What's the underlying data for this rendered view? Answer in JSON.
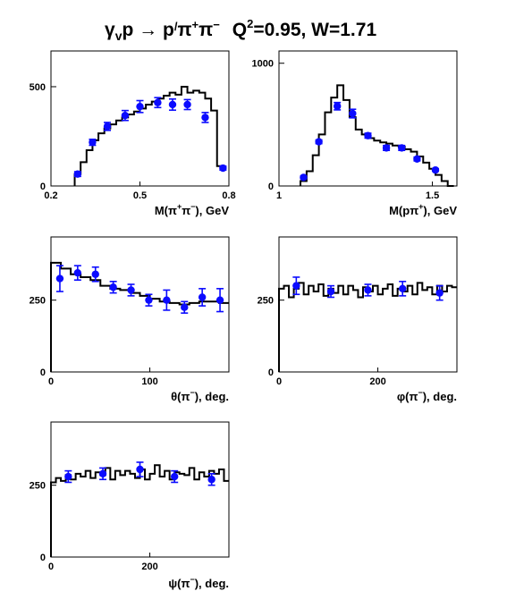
{
  "title": {
    "reaction": "γ",
    "reaction_sub": "v",
    "reaction_rest": "p → p",
    "reaction_prime": "/",
    "reaction_pions": "π",
    "sup_plus": "+",
    "pion2": "π",
    "sup_minus": "−",
    "q2_label": "Q",
    "q2_sup": "2",
    "q2_value": "=0.95, W=1.71"
  },
  "chart_data": [
    {
      "type": "scatter",
      "name": "m_pipi",
      "xlabel": "M(π⁺π⁻), GeV",
      "xlim": [
        0.2,
        0.8
      ],
      "ylim": [
        0,
        680
      ],
      "x_ticks": [
        "0.2",
        "0.5",
        "0.8"
      ],
      "x_tick_values": [
        0.2,
        0.5,
        0.8
      ],
      "y_ticks": [
        "0",
        "500"
      ],
      "y_tick_values": [
        0,
        500
      ],
      "histogram": {
        "edges": [
          0.28,
          0.3,
          0.32,
          0.34,
          0.36,
          0.38,
          0.4,
          0.42,
          0.44,
          0.46,
          0.48,
          0.5,
          0.52,
          0.54,
          0.56,
          0.58,
          0.6,
          0.62,
          0.64,
          0.66,
          0.68,
          0.7,
          0.72,
          0.74,
          0.76,
          0.78
        ],
        "values": [
          60,
          120,
          180,
          230,
          265,
          290,
          310,
          330,
          345,
          360,
          375,
          390,
          410,
          425,
          440,
          455,
          470,
          460,
          500,
          470,
          480,
          470,
          440,
          380,
          100
        ]
      },
      "points": [
        {
          "x": 0.29,
          "y": 60,
          "err": 12
        },
        {
          "x": 0.34,
          "y": 220,
          "err": 15
        },
        {
          "x": 0.39,
          "y": 300,
          "err": 20
        },
        {
          "x": 0.45,
          "y": 355,
          "err": 25
        },
        {
          "x": 0.5,
          "y": 400,
          "err": 30
        },
        {
          "x": 0.56,
          "y": 420,
          "err": 25
        },
        {
          "x": 0.61,
          "y": 410,
          "err": 28
        },
        {
          "x": 0.66,
          "y": 410,
          "err": 25
        },
        {
          "x": 0.72,
          "y": 345,
          "err": 25
        },
        {
          "x": 0.78,
          "y": 90,
          "err": 10
        }
      ]
    },
    {
      "type": "scatter",
      "name": "m_ppip",
      "xlabel": "M(pπ⁺), GeV",
      "xlim": [
        1.0,
        1.58
      ],
      "ylim": [
        0,
        1100
      ],
      "x_ticks": [
        "1",
        "1.5"
      ],
      "x_tick_values": [
        1.0,
        1.5
      ],
      "y_ticks": [
        "0",
        "1000"
      ],
      "y_tick_values": [
        0,
        1000
      ],
      "histogram": {
        "edges": [
          1.07,
          1.09,
          1.11,
          1.13,
          1.15,
          1.17,
          1.19,
          1.21,
          1.23,
          1.25,
          1.27,
          1.29,
          1.31,
          1.33,
          1.35,
          1.37,
          1.39,
          1.41,
          1.43,
          1.45,
          1.47,
          1.49,
          1.51,
          1.53,
          1.55,
          1.57
        ],
        "values": [
          40,
          120,
          250,
          420,
          600,
          720,
          820,
          700,
          560,
          460,
          420,
          390,
          370,
          355,
          345,
          330,
          320,
          300,
          280,
          240,
          190,
          140,
          90,
          40,
          0
        ]
      },
      "points": [
        {
          "x": 1.08,
          "y": 70,
          "err": 10
        },
        {
          "x": 1.13,
          "y": 360,
          "err": 15
        },
        {
          "x": 1.19,
          "y": 650,
          "err": 30
        },
        {
          "x": 1.24,
          "y": 590,
          "err": 35
        },
        {
          "x": 1.29,
          "y": 410,
          "err": 20
        },
        {
          "x": 1.35,
          "y": 310,
          "err": 20
        },
        {
          "x": 1.4,
          "y": 310,
          "err": 20
        },
        {
          "x": 1.45,
          "y": 220,
          "err": 15
        },
        {
          "x": 1.51,
          "y": 130,
          "err": 10
        }
      ]
    },
    {
      "type": "scatter",
      "name": "theta_pim",
      "xlabel": "θ(π⁻), deg.",
      "xlim": [
        0,
        180
      ],
      "ylim": [
        0,
        470
      ],
      "x_ticks": [
        "0",
        "100"
      ],
      "x_tick_values": [
        0,
        100
      ],
      "y_ticks": [
        "0",
        "250"
      ],
      "y_tick_values": [
        0,
        250
      ],
      "histogram": {
        "edges": [
          0,
          10,
          20,
          30,
          40,
          50,
          60,
          70,
          80,
          90,
          100,
          110,
          120,
          130,
          140,
          150,
          160,
          170,
          180
        ],
        "values": [
          380,
          360,
          340,
          330,
          320,
          300,
          290,
          285,
          275,
          265,
          255,
          245,
          240,
          235,
          240,
          245,
          245,
          240
        ]
      },
      "points": [
        {
          "x": 9,
          "y": 325,
          "err": 45
        },
        {
          "x": 27,
          "y": 345,
          "err": 25
        },
        {
          "x": 45,
          "y": 340,
          "err": 25
        },
        {
          "x": 63,
          "y": 295,
          "err": 20
        },
        {
          "x": 81,
          "y": 285,
          "err": 20
        },
        {
          "x": 99,
          "y": 250,
          "err": 20
        },
        {
          "x": 117,
          "y": 250,
          "err": 35
        },
        {
          "x": 135,
          "y": 225,
          "err": 20
        },
        {
          "x": 153,
          "y": 260,
          "err": 30
        },
        {
          "x": 171,
          "y": 250,
          "err": 40
        }
      ]
    },
    {
      "type": "scatter",
      "name": "phi_pim",
      "xlabel": "φ(π⁻), deg.",
      "xlim": [
        0,
        360
      ],
      "ylim": [
        0,
        470
      ],
      "x_ticks": [
        "0",
        "200"
      ],
      "x_tick_values": [
        0,
        200
      ],
      "y_ticks": [
        "0",
        "250"
      ],
      "y_tick_values": [
        0,
        250
      ],
      "histogram": {
        "edges": [
          0,
          10,
          20,
          30,
          40,
          50,
          60,
          70,
          80,
          90,
          100,
          110,
          120,
          130,
          140,
          150,
          160,
          170,
          180,
          190,
          200,
          210,
          220,
          230,
          240,
          250,
          260,
          270,
          280,
          290,
          300,
          310,
          320,
          330,
          340,
          350,
          360
        ],
        "values": [
          290,
          300,
          260,
          290,
          310,
          270,
          300,
          280,
          305,
          265,
          290,
          275,
          300,
          270,
          300,
          285,
          260,
          295,
          280,
          300,
          270,
          290,
          305,
          265,
          290,
          280,
          300,
          270,
          310,
          285,
          295,
          270,
          300,
          280,
          300,
          295
        ]
      },
      "points": [
        {
          "x": 35,
          "y": 300,
          "err": 30
        },
        {
          "x": 105,
          "y": 280,
          "err": 20
        },
        {
          "x": 180,
          "y": 285,
          "err": 20
        },
        {
          "x": 250,
          "y": 290,
          "err": 25
        },
        {
          "x": 325,
          "y": 275,
          "err": 25
        }
      ]
    },
    {
      "type": "scatter",
      "name": "psi_pim",
      "xlabel": "ψ(π⁻), deg.",
      "xlim": [
        0,
        360
      ],
      "ylim": [
        0,
        470
      ],
      "x_ticks": [
        "0",
        "200"
      ],
      "x_tick_values": [
        0,
        200
      ],
      "y_ticks": [
        "0",
        "250"
      ],
      "y_tick_values": [
        0,
        250
      ],
      "histogram": {
        "edges": [
          0,
          10,
          20,
          30,
          40,
          50,
          60,
          70,
          80,
          90,
          100,
          110,
          120,
          130,
          140,
          150,
          160,
          170,
          180,
          190,
          200,
          210,
          220,
          230,
          240,
          250,
          260,
          270,
          280,
          290,
          300,
          310,
          320,
          330,
          340,
          350,
          360
        ],
        "values": [
          260,
          275,
          265,
          285,
          270,
          290,
          280,
          300,
          275,
          295,
          285,
          310,
          270,
          300,
          285,
          300,
          290,
          275,
          305,
          270,
          290,
          320,
          280,
          300,
          270,
          295,
          290,
          285,
          310,
          270,
          295,
          280,
          300,
          290,
          305,
          265
        ]
      },
      "points": [
        {
          "x": 35,
          "y": 280,
          "err": 20
        },
        {
          "x": 105,
          "y": 290,
          "err": 20
        },
        {
          "x": 180,
          "y": 305,
          "err": 25
        },
        {
          "x": 250,
          "y": 280,
          "err": 20
        },
        {
          "x": 325,
          "y": 270,
          "err": 20
        }
      ]
    }
  ],
  "colors": {
    "points": "#0b0bff",
    "histogram": "#000000",
    "frame": "#000000",
    "background": "#ffffff"
  }
}
